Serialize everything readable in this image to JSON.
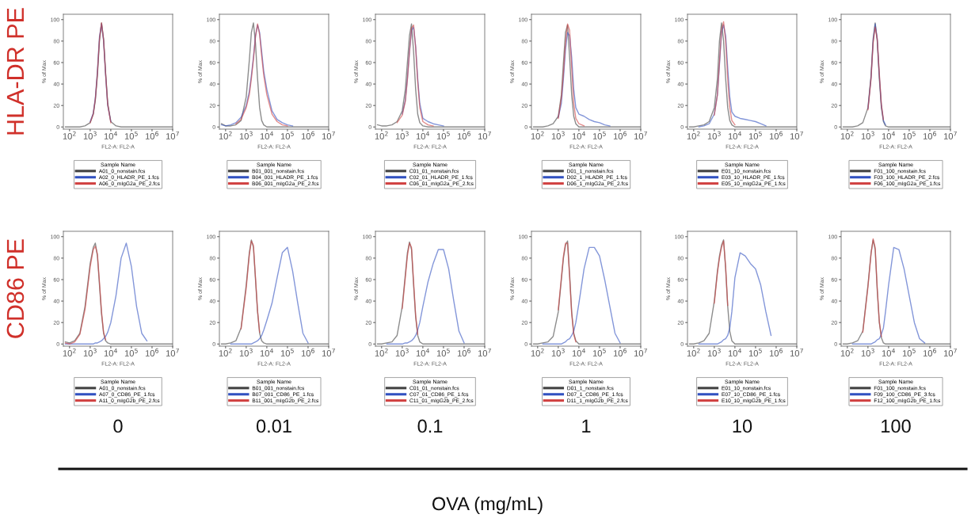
{
  "chart_data": [
    {
      "type": "line",
      "xlabel": "FL2-A: FL2-A",
      "ylabel": "% of Max",
      "legend_title": "Sample Name",
      "legend": "bottom",
      "log": "x",
      "grid": false,
      "marker": "none",
      "line_style": "solid",
      "xlim": [
        50,
        10000000
      ],
      "xticks": [
        {
          "value": 100,
          "label": "10$^{2}$"
        },
        {
          "value": 1000,
          "label": "10$^{3}$"
        },
        {
          "value": 10000,
          "label": "10$^{4}$"
        },
        {
          "value": 100000,
          "label": "10$^{5}$"
        },
        {
          "value": 1000000,
          "label": "10$^{6}$"
        },
        {
          "value": 10000000,
          "label": "10$^{7}$"
        }
      ],
      "ylim": [
        -2,
        105
      ],
      "yticks": [
        0,
        20,
        40,
        60,
        80,
        100
      ],
      "x": [
        63,
        100,
        178,
        316,
        562,
        1000,
        1413,
        1778,
        2239,
        2818,
        3548,
        4467,
        5623,
        7079,
        10000,
        17783,
        31623,
        56234,
        100000,
        177828,
        316228,
        562341,
        1000000,
        10000000
      ],
      "annotations": [
        "HLA-DR PE"
      ],
      "series": [
        {
          "name": "A01_0_nonstain.fcs",
          "color": "#404040",
          "values": [
            0,
            0,
            0,
            0,
            1,
            4,
            12,
            25,
            48,
            80,
            97,
            82,
            50,
            22,
            5,
            1,
            0,
            0,
            0,
            0,
            0,
            0,
            0,
            0
          ]
        },
        {
          "name": "A02_0_HLADR_PE_1.fcs",
          "color": "#3050c0",
          "values": [
            null,
            null,
            null,
            null,
            null,
            5,
            13,
            27,
            52,
            84,
            96,
            80,
            48,
            20,
            5,
            null,
            null,
            null,
            null,
            null,
            null,
            null,
            null,
            null
          ]
        },
        {
          "name": "A06_0_mIgG2a_PE_2.fcs",
          "color": "#d04040",
          "values": [
            null,
            null,
            null,
            null,
            null,
            4,
            12,
            26,
            50,
            82,
            97,
            81,
            49,
            21,
            4,
            null,
            null,
            null,
            null,
            null,
            null,
            null,
            null,
            null
          ]
        }
      ]
    },
    {
      "type": "line",
      "xlabel": "FL2-A: FL2-A",
      "ylabel": "% of Max",
      "legend_title": "Sample Name",
      "legend": "bottom",
      "log": "x",
      "grid": false,
      "marker": "none",
      "line_style": "solid",
      "xlim": [
        50,
        10000000
      ],
      "xticks": [
        {
          "value": 100,
          "label": "10$^{2}$"
        },
        {
          "value": 1000,
          "label": "10$^{3}$"
        },
        {
          "value": 10000,
          "label": "10$^{4}$"
        },
        {
          "value": 100000,
          "label": "10$^{5}$"
        },
        {
          "value": 1000000,
          "label": "10$^{6}$"
        },
        {
          "value": 10000000,
          "label": "10$^{7}$"
        }
      ],
      "ylim": [
        -2,
        105
      ],
      "yticks": [
        0,
        20,
        40,
        60,
        80,
        100
      ],
      "x": [
        63,
        100,
        178,
        316,
        562,
        1000,
        1413,
        1778,
        2239,
        2818,
        3548,
        4467,
        5623,
        7079,
        10000,
        17783,
        31623,
        56234,
        100000,
        177828,
        316228,
        562341,
        1000000,
        10000000
      ],
      "series": [
        {
          "name": "B01_001_nonstain.fcs",
          "color": "#404040",
          "values": [
            3,
            1,
            1,
            2,
            6,
            28,
            62,
            88,
            97,
            78,
            45,
            18,
            6,
            2,
            0,
            0,
            0,
            0,
            0,
            0,
            0,
            0,
            0,
            0
          ]
        },
        {
          "name": "B04_001_HLADR_PE_1.fcs",
          "color": "#3050c0",
          "values": [
            2,
            1,
            2,
            4,
            9,
            20,
            33,
            48,
            65,
            85,
            95,
            88,
            70,
            52,
            35,
            15,
            7,
            4,
            2,
            1,
            null,
            null,
            null,
            null
          ]
        },
        {
          "name": "B06_001_mIgG2a_PE_2.fcs",
          "color": "#d04040",
          "values": [
            null,
            null,
            null,
            3,
            7,
            18,
            30,
            45,
            63,
            84,
            96,
            86,
            66,
            48,
            30,
            12,
            5,
            2,
            1,
            null,
            null,
            null,
            null,
            null
          ]
        }
      ]
    },
    {
      "type": "line",
      "xlabel": "FL2-A: FL2-A",
      "ylabel": "% of Max",
      "legend_title": "Sample Name",
      "legend": "bottom",
      "log": "x",
      "grid": false,
      "marker": "none",
      "line_style": "solid",
      "xlim": [
        50,
        10000000
      ],
      "xticks": [
        {
          "value": 100,
          "label": "10$^{2}$"
        },
        {
          "value": 1000,
          "label": "10$^{3}$"
        },
        {
          "value": 10000,
          "label": "10$^{4}$"
        },
        {
          "value": 100000,
          "label": "10$^{5}$"
        },
        {
          "value": 1000000,
          "label": "10$^{6}$"
        },
        {
          "value": 10000000,
          "label": "10$^{7}$"
        }
      ],
      "ylim": [
        -2,
        105
      ],
      "yticks": [
        0,
        20,
        40,
        60,
        80,
        100
      ],
      "x": [
        63,
        100,
        178,
        316,
        562,
        1000,
        1413,
        1778,
        2239,
        2818,
        3548,
        4467,
        5623,
        7079,
        10000,
        17783,
        31623,
        56234,
        100000,
        177828,
        316228,
        562341,
        1000000,
        10000000
      ],
      "series": [
        {
          "name": "C01_01_nonstain.fcs",
          "color": "#404040",
          "values": [
            2,
            1,
            1,
            2,
            5,
            15,
            35,
            60,
            85,
            96,
            70,
            35,
            12,
            4,
            1,
            0,
            0,
            0,
            0,
            0,
            0,
            0,
            0,
            0
          ]
        },
        {
          "name": "C02_01_HLADR_PE_1.fcs",
          "color": "#3050c0",
          "values": [
            null,
            null,
            null,
            null,
            null,
            12,
            25,
            45,
            70,
            90,
            93,
            75,
            45,
            22,
            8,
            5,
            3,
            2,
            1,
            null,
            null,
            null,
            null,
            null
          ]
        },
        {
          "name": "C06_01_mIgG2a_PE_2.fcs",
          "color": "#d04040",
          "values": [
            null,
            null,
            null,
            null,
            4,
            11,
            24,
            44,
            70,
            92,
            95,
            74,
            42,
            18,
            5,
            2,
            1,
            null,
            null,
            null,
            null,
            null,
            null,
            null
          ]
        }
      ]
    },
    {
      "type": "line",
      "xlabel": "FL2-A: FL2-A",
      "ylabel": "% of Max",
      "legend_title": "Sample Name",
      "legend": "bottom",
      "log": "x",
      "grid": false,
      "marker": "none",
      "line_style": "solid",
      "xlim": [
        50,
        10000000
      ],
      "xticks": [
        {
          "value": 100,
          "label": "10$^{2}$"
        },
        {
          "value": 1000,
          "label": "10$^{3}$"
        },
        {
          "value": 10000,
          "label": "10$^{4}$"
        },
        {
          "value": 100000,
          "label": "10$^{5}$"
        },
        {
          "value": 1000000,
          "label": "10$^{6}$"
        },
        {
          "value": 10000000,
          "label": "10$^{7}$"
        }
      ],
      "ylim": [
        -2,
        105
      ],
      "yticks": [
        0,
        20,
        40,
        60,
        80,
        100
      ],
      "x": [
        63,
        100,
        178,
        316,
        562,
        1000,
        1413,
        1778,
        2239,
        2818,
        3548,
        4467,
        5623,
        7079,
        10000,
        17783,
        31623,
        56234,
        100000,
        177828,
        316228,
        562341,
        1000000,
        10000000
      ],
      "series": [
        {
          "name": "D01_1_nonstain.fcs",
          "color": "#404040",
          "values": [
            0,
            0,
            0,
            1,
            3,
            10,
            30,
            60,
            88,
            95,
            65,
            30,
            10,
            3,
            0,
            0,
            0,
            0,
            0,
            0,
            0,
            0,
            0,
            0
          ]
        },
        {
          "name": "D02_1_HLADR_PE_1.fcs",
          "color": "#3050c0",
          "values": [
            null,
            null,
            null,
            null,
            null,
            9,
            22,
            45,
            72,
            88,
            85,
            65,
            35,
            18,
            12,
            10,
            7,
            5,
            4,
            2,
            1,
            null,
            null,
            null
          ]
        },
        {
          "name": "D06_1_mIgG2a_PE_2.fcs",
          "color": "#d04040",
          "values": [
            null,
            null,
            null,
            null,
            null,
            8,
            27,
            50,
            78,
            96,
            90,
            55,
            22,
            8,
            3,
            1,
            null,
            null,
            null,
            null,
            null,
            null,
            null,
            null
          ]
        }
      ]
    },
    {
      "type": "line",
      "xlabel": "FL2-A: FL2-A",
      "ylabel": "% of Max",
      "legend_title": "Sample Name",
      "legend": "bottom",
      "log": "x",
      "grid": false,
      "marker": "none",
      "line_style": "solid",
      "xlim": [
        50,
        10000000
      ],
      "xticks": [
        {
          "value": 100,
          "label": "10$^{2}$"
        },
        {
          "value": 1000,
          "label": "10$^{3}$"
        },
        {
          "value": 10000,
          "label": "10$^{4}$"
        },
        {
          "value": 100000,
          "label": "10$^{5}$"
        },
        {
          "value": 1000000,
          "label": "10$^{6}$"
        },
        {
          "value": 10000000,
          "label": "10$^{7}$"
        }
      ],
      "ylim": [
        -2,
        105
      ],
      "yticks": [
        0,
        20,
        40,
        60,
        80,
        100
      ],
      "x": [
        63,
        100,
        178,
        316,
        562,
        1000,
        1413,
        1778,
        2239,
        2818,
        3548,
        4467,
        5623,
        7079,
        10000,
        17783,
        31623,
        56234,
        100000,
        177828,
        316228,
        562341,
        1000000,
        10000000
      ],
      "series": [
        {
          "name": "E01_10_nonstain.fcs",
          "color": "#404040",
          "values": [
            0,
            0,
            1,
            2,
            5,
            18,
            45,
            80,
            97,
            80,
            45,
            18,
            6,
            2,
            0,
            0,
            0,
            0,
            0,
            0,
            0,
            0,
            0,
            0
          ]
        },
        {
          "name": "E03_10_HLADR_PE_1.fcs",
          "color": "#3050c0",
          "values": [
            null,
            null,
            0,
            1,
            3,
            12,
            30,
            58,
            88,
            95,
            85,
            55,
            28,
            14,
            10,
            8,
            7,
            6,
            5,
            3,
            1,
            null,
            null,
            null
          ]
        },
        {
          "name": "E05_10_mIgG2a_PE_1.fcs",
          "color": "#d04040",
          "values": [
            null,
            null,
            null,
            null,
            null,
            11,
            30,
            60,
            90,
            98,
            80,
            45,
            18,
            6,
            2,
            null,
            null,
            null,
            null,
            null,
            null,
            null,
            null,
            null
          ]
        }
      ]
    },
    {
      "type": "line",
      "xlabel": "FL2-A: FL2-A",
      "ylabel": "% of Max",
      "legend_title": "Sample Name",
      "legend": "bottom",
      "log": "x",
      "grid": false,
      "marker": "none",
      "line_style": "solid",
      "xlim": [
        50,
        10000000
      ],
      "xticks": [
        {
          "value": 100,
          "label": "10$^{2}$"
        },
        {
          "value": 1000,
          "label": "10$^{3}$"
        },
        {
          "value": 10000,
          "label": "10$^{4}$"
        },
        {
          "value": 100000,
          "label": "10$^{5}$"
        },
        {
          "value": 1000000,
          "label": "10$^{6}$"
        },
        {
          "value": 10000000,
          "label": "10$^{7}$"
        }
      ],
      "ylim": [
        -2,
        105
      ],
      "yticks": [
        0,
        20,
        40,
        60,
        80,
        100
      ],
      "x": [
        63,
        100,
        178,
        316,
        562,
        1000,
        1413,
        1778,
        2239,
        2818,
        3548,
        4467,
        5623,
        7079,
        10000,
        17783,
        31623,
        56234,
        100000,
        177828,
        316228,
        562341,
        1000000,
        10000000
      ],
      "series": [
        {
          "name": "F01_100_nonstain.fcs",
          "color": "#404040",
          "values": [
            0,
            0,
            0,
            1,
            4,
            18,
            48,
            82,
            97,
            80,
            45,
            18,
            5,
            1,
            0,
            0,
            0,
            0,
            0,
            0,
            0,
            0,
            0,
            0
          ]
        },
        {
          "name": "F03_100_HLADR_PE_2.fcs",
          "color": "#3050c0",
          "values": [
            null,
            null,
            null,
            null,
            null,
            17,
            46,
            80,
            96,
            82,
            48,
            20,
            6,
            2,
            null,
            null,
            null,
            null,
            null,
            null,
            null,
            null,
            null,
            null
          ]
        },
        {
          "name": "F06_100_mIgG2a_PE_1.fcs",
          "color": "#d04040",
          "values": [
            null,
            null,
            null,
            null,
            null,
            16,
            45,
            78,
            93,
            82,
            50,
            21,
            7,
            null,
            null,
            null,
            null,
            null,
            null,
            null,
            null,
            null,
            null,
            null
          ]
        }
      ]
    },
    {
      "type": "line",
      "xlabel": "FL2-A: FL2-A",
      "ylabel": "% of Max",
      "legend_title": "Sample Name",
      "legend": "bottom",
      "log": "x",
      "grid": false,
      "marker": "none",
      "line_style": "solid",
      "xlim": [
        50,
        10000000
      ],
      "xticks": [
        {
          "value": 100,
          "label": "10$^{2}$"
        },
        {
          "value": 1000,
          "label": "10$^{3}$"
        },
        {
          "value": 10000,
          "label": "10$^{4}$"
        },
        {
          "value": 100000,
          "label": "10$^{5}$"
        },
        {
          "value": 1000000,
          "label": "10$^{6}$"
        },
        {
          "value": 10000000,
          "label": "10$^{7}$"
        }
      ],
      "ylim": [
        -2,
        105
      ],
      "yticks": [
        0,
        20,
        40,
        60,
        80,
        100
      ],
      "x": [
        63,
        100,
        178,
        316,
        562,
        1000,
        1413,
        1778,
        2239,
        2818,
        3548,
        4467,
        5623,
        7079,
        10000,
        17783,
        31623,
        56234,
        100000,
        177828,
        316228,
        562341,
        1000000,
        10000000
      ],
      "annotations": [
        "CD86 PE",
        "0"
      ],
      "series": [
        {
          "name": "A01_0_nonstain.fcs",
          "color": "#404040",
          "values": [
            2,
            1,
            3,
            10,
            35,
            75,
            90,
            94,
            82,
            55,
            28,
            10,
            3,
            1,
            0,
            0,
            0,
            0,
            0,
            0,
            0,
            0,
            0,
            0
          ]
        },
        {
          "name": "A07_0_CD86_PE_1.fcs",
          "color": "#3050c0",
          "values": [
            0,
            0,
            0,
            0,
            0,
            0,
            0,
            1,
            1,
            2,
            3,
            5,
            7,
            11,
            20,
            45,
            80,
            94,
            72,
            35,
            10,
            3,
            null,
            null
          ]
        },
        {
          "name": "A11_0_mIgG2b_PE_2.fcs",
          "color": "#d04040",
          "values": [
            1,
            0,
            2,
            9,
            32,
            72,
            88,
            91,
            84,
            58,
            30,
            11,
            4,
            null,
            null,
            null,
            null,
            null,
            null,
            null,
            null,
            null,
            null,
            null
          ]
        }
      ]
    },
    {
      "type": "line",
      "xlabel": "FL2-A: FL2-A",
      "ylabel": "% of Max",
      "legend_title": "Sample Name",
      "legend": "bottom",
      "log": "x",
      "grid": false,
      "marker": "none",
      "line_style": "solid",
      "xlim": [
        50,
        10000000
      ],
      "xticks": [
        {
          "value": 100,
          "label": "10$^{2}$"
        },
        {
          "value": 1000,
          "label": "10$^{3}$"
        },
        {
          "value": 10000,
          "label": "10$^{4}$"
        },
        {
          "value": 100000,
          "label": "10$^{5}$"
        },
        {
          "value": 1000000,
          "label": "10$^{6}$"
        },
        {
          "value": 10000000,
          "label": "10$^{7}$"
        }
      ],
      "ylim": [
        -2,
        105
      ],
      "yticks": [
        0,
        20,
        40,
        60,
        80,
        100
      ],
      "x": [
        63,
        100,
        178,
        316,
        562,
        1000,
        1413,
        1778,
        2239,
        2818,
        3548,
        4467,
        5623,
        7079,
        10000,
        17783,
        31623,
        56234,
        100000,
        177828,
        316228,
        562341,
        1000000,
        10000000
      ],
      "annotations": [
        "0.01"
      ],
      "series": [
        {
          "name": "B01_001_nonstain.fcs",
          "color": "#404040",
          "values": [
            0,
            0,
            1,
            3,
            15,
            55,
            85,
            97,
            90,
            60,
            30,
            10,
            3,
            1,
            0,
            0,
            0,
            0,
            0,
            0,
            0,
            0,
            0,
            0
          ]
        },
        {
          "name": "B07_001_CD86_PE_1.fcs",
          "color": "#3050c0",
          "values": [
            null,
            null,
            0,
            0,
            0,
            0,
            0,
            0,
            1,
            2,
            3,
            5,
            8,
            13,
            22,
            38,
            62,
            85,
            90,
            68,
            38,
            10,
            1,
            null
          ]
        },
        {
          "name": "B11_001_mIgG2b_PE_2.fcs",
          "color": "#d04040",
          "values": [
            null,
            null,
            null,
            null,
            14,
            52,
            83,
            96,
            92,
            62,
            31,
            11,
            null,
            null,
            null,
            null,
            null,
            null,
            null,
            null,
            null,
            null,
            null,
            null
          ]
        }
      ]
    },
    {
      "type": "line",
      "xlabel": "FL2-A: FL2-A",
      "ylabel": "% of Max",
      "legend_title": "Sample Name",
      "legend": "bottom",
      "log": "x",
      "grid": false,
      "marker": "none",
      "line_style": "solid",
      "xlim": [
        50,
        10000000
      ],
      "xticks": [
        {
          "value": 100,
          "label": "10$^{2}$"
        },
        {
          "value": 1000,
          "label": "10$^{3}$"
        },
        {
          "value": 10000,
          "label": "10$^{4}$"
        },
        {
          "value": 100000,
          "label": "10$^{5}$"
        },
        {
          "value": 1000000,
          "label": "10$^{6}$"
        },
        {
          "value": 10000000,
          "label": "10$^{7}$"
        }
      ],
      "ylim": [
        -2,
        105
      ],
      "yticks": [
        0,
        20,
        40,
        60,
        80,
        100
      ],
      "x": [
        63,
        100,
        178,
        316,
        562,
        1000,
        1413,
        1778,
        2239,
        2818,
        3548,
        4467,
        5623,
        7079,
        10000,
        17783,
        31623,
        56234,
        100000,
        177828,
        316228,
        562341,
        1000000,
        10000000
      ],
      "annotations": [
        "0.1"
      ],
      "series": [
        {
          "name": "C01_01_nonstain.fcs",
          "color": "#404040",
          "values": [
            0,
            0,
            1,
            2,
            8,
            35,
            65,
            85,
            95,
            88,
            55,
            25,
            8,
            2,
            0,
            0,
            0,
            0,
            0,
            0,
            0,
            0,
            0,
            0
          ]
        },
        {
          "name": "C07_01_CD86_PE_1.fcs",
          "color": "#3050c0",
          "values": [
            null,
            null,
            0,
            0,
            0,
            0,
            1,
            1,
            2,
            3,
            5,
            8,
            13,
            20,
            35,
            58,
            75,
            88,
            88,
            70,
            40,
            12,
            1,
            null
          ]
        },
        {
          "name": "C11_01_mIgG2b_PE_2.fcs",
          "color": "#d04040",
          "values": [
            null,
            null,
            null,
            null,
            null,
            33,
            62,
            82,
            94,
            90,
            58,
            27,
            9,
            null,
            null,
            null,
            null,
            null,
            null,
            null,
            null,
            null,
            null,
            null
          ]
        }
      ]
    },
    {
      "type": "line",
      "xlabel": "FL2-A: FL2-A",
      "ylabel": "% of Max",
      "legend_title": "Sample Name",
      "legend": "bottom",
      "log": "x",
      "grid": false,
      "marker": "none",
      "line_style": "solid",
      "xlim": [
        50,
        10000000
      ],
      "xticks": [
        {
          "value": 100,
          "label": "10$^{2}$"
        },
        {
          "value": 1000,
          "label": "10$^{3}$"
        },
        {
          "value": 10000,
          "label": "10$^{4}$"
        },
        {
          "value": 100000,
          "label": "10$^{5}$"
        },
        {
          "value": 1000000,
          "label": "10$^{6}$"
        },
        {
          "value": 10000000,
          "label": "10$^{7}$"
        }
      ],
      "ylim": [
        -2,
        105
      ],
      "yticks": [
        0,
        20,
        40,
        60,
        80,
        100
      ],
      "x": [
        63,
        100,
        178,
        316,
        562,
        1000,
        1413,
        1778,
        2239,
        2818,
        3548,
        4467,
        5623,
        7079,
        10000,
        17783,
        31623,
        56234,
        100000,
        177828,
        316228,
        562341,
        1000000,
        10000000
      ],
      "annotations": [
        "1"
      ],
      "series": [
        {
          "name": "D01_1_nonstain.fcs",
          "color": "#404040",
          "values": [
            0,
            0,
            1,
            2,
            7,
            30,
            60,
            80,
            92,
            96,
            65,
            30,
            10,
            3,
            0,
            0,
            0,
            0,
            0,
            0,
            0,
            0,
            0,
            0
          ]
        },
        {
          "name": "D07_1_CD86_PE_1.fcs",
          "color": "#3050c0",
          "values": [
            null,
            null,
            0,
            0,
            0,
            0,
            0,
            1,
            2,
            4,
            5,
            8,
            12,
            20,
            38,
            70,
            90,
            90,
            82,
            60,
            35,
            10,
            1,
            null
          ]
        },
        {
          "name": "D11_1_mIgG2b_PE_2.fcs",
          "color": "#d04040",
          "values": [
            null,
            null,
            null,
            null,
            null,
            32,
            62,
            82,
            94,
            94,
            62,
            28,
            9,
            2,
            null,
            null,
            null,
            null,
            null,
            null,
            null,
            null,
            null,
            null
          ]
        }
      ]
    },
    {
      "type": "line",
      "xlabel": "FL2-A: FL2-A",
      "ylabel": "% of Max",
      "legend_title": "Sample Name",
      "legend": "bottom",
      "log": "x",
      "grid": false,
      "marker": "none",
      "line_style": "solid",
      "xlim": [
        50,
        10000000
      ],
      "xticks": [
        {
          "value": 100,
          "label": "10$^{2}$"
        },
        {
          "value": 1000,
          "label": "10$^{3}$"
        },
        {
          "value": 10000,
          "label": "10$^{4}$"
        },
        {
          "value": 100000,
          "label": "10$^{5}$"
        },
        {
          "value": 1000000,
          "label": "10$^{6}$"
        },
        {
          "value": 10000000,
          "label": "10$^{7}$"
        }
      ],
      "ylim": [
        -2,
        105
      ],
      "yticks": [
        0,
        20,
        40,
        60,
        80,
        100
      ],
      "x": [
        63,
        100,
        178,
        316,
        562,
        1000,
        1413,
        1778,
        2239,
        2818,
        3548,
        4467,
        5623,
        7079,
        10000,
        17783,
        31623,
        56234,
        100000,
        177828,
        316228,
        562341,
        1000000,
        10000000
      ],
      "annotations": [
        "10"
      ],
      "series": [
        {
          "name": "E01_10_nonstain.fcs",
          "color": "#404040",
          "values": [
            0,
            0,
            1,
            3,
            10,
            40,
            68,
            82,
            92,
            97,
            70,
            35,
            12,
            3,
            0,
            0,
            0,
            0,
            0,
            0,
            0,
            0,
            0,
            0
          ]
        },
        {
          "name": "E07_10_CD86_PE_1.fcs",
          "color": "#3050c0",
          "values": [
            null,
            null,
            0,
            0,
            0,
            0,
            0,
            1,
            2,
            4,
            5,
            8,
            15,
            30,
            62,
            85,
            82,
            75,
            70,
            55,
            30,
            8,
            null,
            null
          ]
        },
        {
          "name": "E10_10_mIgG2b_PE_1.fcs",
          "color": "#d04040",
          "values": [
            null,
            null,
            null,
            null,
            null,
            38,
            66,
            80,
            90,
            96,
            72,
            36,
            null,
            null,
            null,
            null,
            null,
            null,
            null,
            null,
            null,
            null,
            null,
            null
          ]
        }
      ]
    },
    {
      "type": "line",
      "xlabel": "FL2-A: FL2-A",
      "ylabel": "% of Max",
      "legend_title": "Sample Name",
      "legend": "bottom",
      "log": "x",
      "grid": false,
      "marker": "none",
      "line_style": "solid",
      "xlim": [
        50,
        10000000
      ],
      "xticks": [
        {
          "value": 100,
          "label": "10$^{2}$"
        },
        {
          "value": 1000,
          "label": "10$^{3}$"
        },
        {
          "value": 10000,
          "label": "10$^{4}$"
        },
        {
          "value": 100000,
          "label": "10$^{5}$"
        },
        {
          "value": 1000000,
          "label": "10$^{6}$"
        },
        {
          "value": 10000000,
          "label": "10$^{7}$"
        }
      ],
      "ylim": [
        -2,
        105
      ],
      "yticks": [
        0,
        20,
        40,
        60,
        80,
        100
      ],
      "x": [
        63,
        100,
        178,
        316,
        562,
        1000,
        1413,
        1778,
        2239,
        2818,
        3548,
        4467,
        5623,
        7079,
        10000,
        17783,
        31623,
        56234,
        100000,
        177828,
        316228,
        562341,
        1000000,
        10000000
      ],
      "annotations": [
        "100",
        "OVA (mg/mL)"
      ],
      "series": [
        {
          "name": "F01_100_nonstain.fcs",
          "color": "#404040",
          "values": [
            0,
            0,
            1,
            3,
            12,
            55,
            85,
            97,
            88,
            50,
            20,
            6,
            1,
            0,
            0,
            0,
            0,
            0,
            0,
            0,
            0,
            0,
            0,
            0
          ]
        },
        {
          "name": "F09_100_CD86_PE_3.fcs",
          "color": "#3050c0",
          "values": [
            null,
            null,
            0,
            0,
            0,
            0,
            0,
            1,
            2,
            4,
            5,
            9,
            15,
            30,
            55,
            90,
            88,
            70,
            45,
            20,
            5,
            1,
            null,
            null
          ]
        },
        {
          "name": "F12_100_mIgG2b_PE_1.fcs",
          "color": "#d04040",
          "values": [
            null,
            null,
            null,
            null,
            11,
            53,
            84,
            98,
            90,
            52,
            21,
            7,
            null,
            null,
            null,
            null,
            null,
            null,
            null,
            null,
            null,
            null,
            null,
            null
          ]
        }
      ]
    }
  ]
}
